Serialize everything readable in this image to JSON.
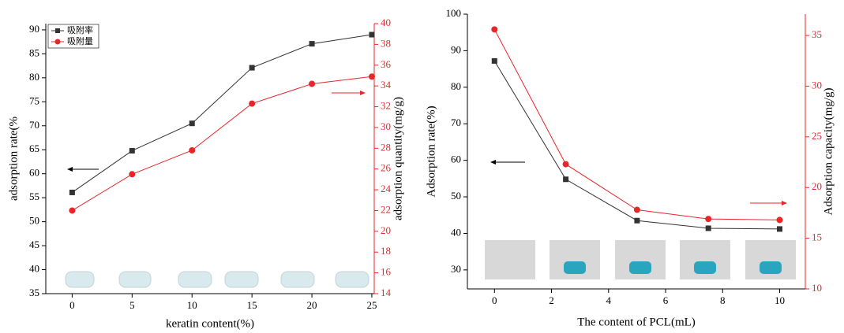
{
  "chart_data": [
    {
      "type": "line",
      "x": [
        0,
        5,
        10,
        15,
        20,
        25
      ],
      "x_label": "keratin content(%)",
      "y_label": "adsorption rate(%",
      "y2_label": "adsorption quantity(mg/g)",
      "xlim": [
        -2.2,
        25.2
      ],
      "xticks": [
        0,
        5,
        10,
        15,
        20,
        25
      ],
      "ylim": [
        35,
        91.3
      ],
      "yticks": [
        35,
        40,
        45,
        50,
        55,
        60,
        65,
        70,
        75,
        80,
        85,
        90
      ],
      "y2lim": [
        14,
        40
      ],
      "y2ticks": [
        14,
        16,
        18,
        20,
        22,
        24,
        26,
        28,
        30,
        32,
        34,
        36,
        38,
        40
      ],
      "legend": "upper left",
      "series": [
        {
          "name": "吸附率",
          "color": "#333333",
          "marker": "square",
          "values": [
            56.1,
            64.8,
            70.5,
            82.1,
            87.1,
            89.0
          ]
        },
        {
          "name": "吸附量",
          "color": "#e8262a",
          "marker": "circle",
          "axis": "y2",
          "values": [
            22.0,
            25.5,
            27.8,
            32.3,
            34.2,
            34.9
          ]
        }
      ]
    },
    {
      "type": "line",
      "x": [
        0,
        2.5,
        5,
        7.5,
        10
      ],
      "x_label": "The content of PCL(mL)",
      "y_label": "Adsorption rate(%)",
      "y2_label": "Adsorption capacity(mg/g)",
      "xlim": [
        -0.95,
        10.9
      ],
      "xticks": [
        0,
        2,
        4,
        6,
        8,
        10
      ],
      "ylim": [
        24.8,
        100
      ],
      "yticks": [
        30,
        40,
        50,
        60,
        70,
        80,
        90,
        100
      ],
      "y2lim": [
        10,
        37.1
      ],
      "y2ticks": [
        10,
        15,
        20,
        25,
        30,
        35
      ],
      "series": [
        {
          "color": "#333333",
          "marker": "square",
          "values": [
            87.2,
            54.8,
            43.5,
            41.4,
            41.2
          ]
        },
        {
          "color": "#e8262a",
          "marker": "circle",
          "axis": "y2",
          "values": [
            35.6,
            22.3,
            17.8,
            16.9,
            16.8
          ]
        }
      ]
    }
  ]
}
